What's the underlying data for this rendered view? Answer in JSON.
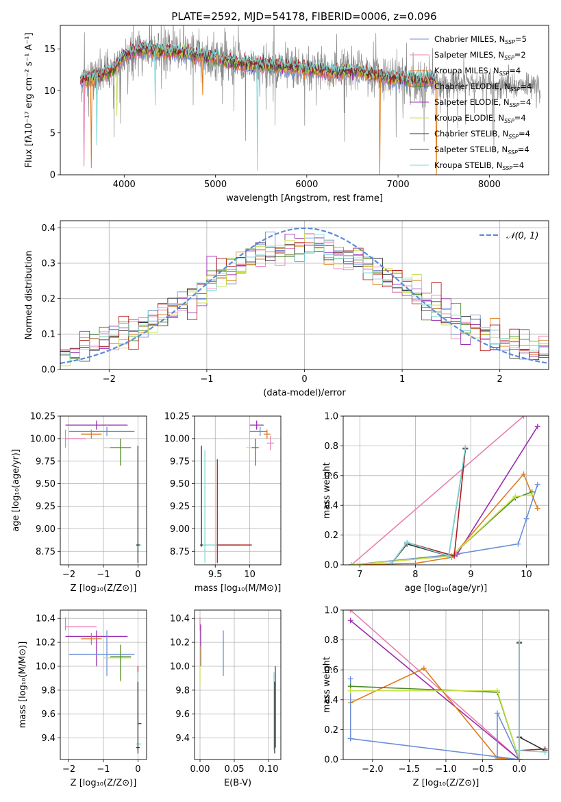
{
  "figure": {
    "title": "PLATE=2592, MJD=54178, FIBERID=0006, z=0.096"
  },
  "colors": {
    "Chabrier MILES": "#6a8fd8",
    "Salpeter MILES": "#e87fb0",
    "Kroupa MILES": "#e07b1a",
    "Chabrier ELODIE": "#4b8a2a",
    "Salpeter ELODIE": "#9a2cb0",
    "Kroupa ELODIE": "#c8e04a",
    "Chabrier STELIB": "#333333",
    "Salpeter STELIB": "#b01c1c",
    "Kroupa STELIB": "#7ed8d8",
    "data": "#888888",
    "normal": "#5b8bd8"
  },
  "chart_data": [
    {
      "id": "spectrum",
      "type": "line",
      "title": "PLATE=2592, MJD=54178, FIBERID=0006, z=0.096",
      "xlabel": "wavelength [Angstrom, rest frame]",
      "ylabel": "Flux [fλ10⁻¹⁷ erg cm⁻² s⁻¹ A⁻¹]",
      "xlim": [
        3300,
        8650
      ],
      "ylim": [
        0,
        17.8
      ],
      "xticks": [
        4000,
        5000,
        6000,
        7000,
        8000
      ],
      "yticks": [
        0,
        5,
        10,
        15
      ],
      "legend_position": "top-right",
      "legend": [
        {
          "name": "Chabrier MILES",
          "label": "Chabrier MILES, N",
          "sub": "SSP",
          "tail": "=5"
        },
        {
          "name": "Salpeter MILES",
          "label": "Salpeter MILES, N",
          "sub": "SSP",
          "tail": "=2"
        },
        {
          "name": "Kroupa MILES",
          "label": "Kroupa MILES, N",
          "sub": "SSP",
          "tail": "=4"
        },
        {
          "name": "Chabrier ELODIE",
          "label": "Chabrier ELODIE, N",
          "sub": "SSP",
          "tail": "=4"
        },
        {
          "name": "Salpeter ELODIE",
          "label": "Salpeter ELODIE, N",
          "sub": "SSP",
          "tail": "=4"
        },
        {
          "name": "Kroupa ELODIE",
          "label": "Kroupa ELODIE, N",
          "sub": "SSP",
          "tail": "=4"
        },
        {
          "name": "Chabrier STELIB",
          "label": "Chabrier STELIB, N",
          "sub": "SSP",
          "tail": "=4"
        },
        {
          "name": "Salpeter STELIB",
          "label": "Salpeter STELIB, N",
          "sub": "SSP",
          "tail": "=4"
        },
        {
          "name": "Kroupa STELIB",
          "label": "Kroupa STELIB, N",
          "sub": "SSP",
          "tail": "=4"
        }
      ],
      "continuum": [
        [
          3520,
          11.3
        ],
        [
          3700,
          11.6
        ],
        [
          3900,
          12.6
        ],
        [
          4000,
          14.2
        ],
        [
          4200,
          14.9
        ],
        [
          4500,
          14.7
        ],
        [
          4800,
          14.3
        ],
        [
          5000,
          13.9
        ],
        [
          5200,
          13.3
        ],
        [
          5500,
          13.0
        ],
        [
          5800,
          12.8
        ],
        [
          6000,
          12.6
        ],
        [
          6300,
          12.2
        ],
        [
          6560,
          12.3
        ],
        [
          6800,
          11.7
        ],
        [
          7000,
          11.4
        ],
        [
          7300,
          11.3
        ],
        [
          7400,
          11.3
        ]
      ],
      "data_noise": 1.3,
      "data_range": [
        3520,
        8560
      ],
      "dips": [
        [
          3560,
          1.0,
          "Salpeter MILES"
        ],
        [
          3640,
          0.8,
          "Kroupa MILES"
        ],
        [
          3700,
          3.5,
          "Kroupa STELIB"
        ],
        [
          3920,
          7.0,
          "Kroupa ELODIE"
        ],
        [
          4340,
          8.3,
          "Kroupa STELIB"
        ],
        [
          4860,
          9.5,
          "Kroupa MILES"
        ],
        [
          5460,
          0.5,
          "Kroupa STELIB"
        ],
        [
          6800,
          0.0,
          "Kroupa MILES"
        ],
        [
          7420,
          0.0,
          "Kroupa MILES"
        ]
      ]
    },
    {
      "id": "residuals",
      "type": "histogram",
      "xlabel": "(data-model)/error",
      "ylabel": "Normed distribution",
      "xlim": [
        -2.5,
        2.5
      ],
      "ylim": [
        0,
        0.42
      ],
      "xticks": [
        -2,
        -1,
        0,
        1,
        2
      ],
      "yticks": [
        0.0,
        0.1,
        0.2,
        0.3,
        0.4
      ],
      "grid": true,
      "legend_position": "top-right",
      "normal_label": "𝒩(0, 1)",
      "bin_width": 0.1
    },
    {
      "id": "age_vs_Z",
      "type": "errorbar",
      "xlabel": "Z [log₁₀(Z/Z⊙)]",
      "ylabel": "age  [log₁₀(age/yr)]",
      "xlim": [
        -2.25,
        0.25
      ],
      "ylim": [
        8.6,
        10.25
      ],
      "xticks": [
        -2,
        -1,
        0
      ],
      "yticks": [
        8.75,
        9.0,
        9.25,
        9.5,
        9.75,
        10.0,
        10.25
      ],
      "points": [
        {
          "name": "Salpeter MILES",
          "x": -2.1,
          "y": 10.0,
          "xerr": [
            0.0,
            0.6
          ],
          "yerr": [
            0.1,
            0.1
          ]
        },
        {
          "name": "Salpeter ELODIE",
          "x": -1.2,
          "y": 10.15,
          "xerr": [
            0.9,
            0.9
          ],
          "yerr": [
            0.05,
            0.05
          ]
        },
        {
          "name": "Chabrier MILES",
          "x": -0.9,
          "y": 10.08,
          "xerr": [
            1.1,
            0.8
          ],
          "yerr": [
            0.05,
            0.05
          ]
        },
        {
          "name": "Kroupa MILES",
          "x": -1.35,
          "y": 10.05,
          "xerr": [
            0.3,
            0.3
          ],
          "yerr": [
            0.05,
            0.05
          ]
        },
        {
          "name": "Kroupa ELODIE",
          "x": -0.5,
          "y": 9.9,
          "xerr": [
            0.5,
            0.3
          ],
          "yerr": [
            0.2,
            0.1
          ]
        },
        {
          "name": "Chabrier ELODIE",
          "x": -0.5,
          "y": 9.9,
          "xerr": [
            0.3,
            0.3
          ],
          "yerr": [
            0.2,
            0.1
          ]
        },
        {
          "name": "Kroupa STELIB",
          "x": 0.0,
          "y": 8.82,
          "xerr": [
            0.05,
            0.1
          ],
          "yerr": [
            0.2,
            1.1
          ]
        },
        {
          "name": "Chabrier STELIB",
          "x": 0.0,
          "y": 8.82,
          "xerr": [
            0.05,
            0.05
          ],
          "yerr": [
            0.2,
            1.1
          ]
        }
      ]
    },
    {
      "id": "age_vs_mass",
      "type": "errorbar",
      "xlabel": "mass [log₁₀(M/M⊙)]",
      "xlim": [
        9.2,
        10.45
      ],
      "ylim": [
        8.6,
        10.25
      ],
      "xticks": [
        9.5,
        10.0
      ],
      "yticks": [
        8.75,
        9.0,
        9.25,
        9.5,
        9.75,
        10.0,
        10.25
      ],
      "points": [
        {
          "name": "Salpeter ELODIE",
          "x": 10.1,
          "y": 10.15,
          "xerr": [
            0.1,
            0.1
          ],
          "yerr": [
            0.05,
            0.05
          ]
        },
        {
          "name": "Salpeter MILES",
          "x": 10.3,
          "y": 9.95,
          "xerr": [
            0.05,
            0.05
          ],
          "yerr": [
            0.08,
            0.08
          ]
        },
        {
          "name": "Chabrier MILES",
          "x": 10.15,
          "y": 10.08,
          "xerr": [
            0.15,
            0.1
          ],
          "yerr": [
            0.05,
            0.05
          ]
        },
        {
          "name": "Kroupa MILES",
          "x": 10.25,
          "y": 10.05,
          "xerr": [
            0.05,
            0.05
          ],
          "yerr": [
            0.05,
            0.05
          ]
        },
        {
          "name": "Kroupa ELODIE",
          "x": 10.08,
          "y": 9.9,
          "xerr": [
            0.13,
            0.05
          ],
          "yerr": [
            0.2,
            0.1
          ]
        },
        {
          "name": "Chabrier ELODIE",
          "x": 10.08,
          "y": 9.9,
          "xerr": [
            0.05,
            0.05
          ],
          "yerr": [
            0.2,
            0.1
          ]
        },
        {
          "name": "Kroupa STELIB",
          "x": 9.35,
          "y": 8.82,
          "xerr": [
            0.05,
            0.5
          ],
          "yerr": [
            0.2,
            1.05
          ]
        },
        {
          "name": "Chabrier STELIB",
          "x": 9.3,
          "y": 8.82,
          "xerr": [
            0.02,
            0.02
          ],
          "yerr": [
            0.02,
            1.1
          ]
        },
        {
          "name": "Salpeter STELIB",
          "x": 9.53,
          "y": 8.82,
          "xerr": [
            0.0,
            0.5
          ],
          "yerr": [
            0.2,
            0.95
          ]
        }
      ]
    },
    {
      "id": "weight_vs_age",
      "type": "line",
      "xlabel": "age  [log₁₀(age/yr)]",
      "ylabel": "mass weight",
      "xlim": [
        6.7,
        10.4
      ],
      "ylim": [
        0,
        1.0
      ],
      "xticks": [
        7,
        8,
        9,
        10
      ],
      "yticks": [
        0.0,
        0.2,
        0.4,
        0.6,
        0.8,
        1.0
      ],
      "series": [
        {
          "name": "Salpeter MILES",
          "x": [
            6.85,
            9.95
          ],
          "y": [
            0.0,
            1.0
          ]
        },
        {
          "name": "Salpeter ELODIE",
          "x": [
            6.85,
            8.75,
            10.2
          ],
          "y": [
            0.0,
            0.07,
            0.93
          ]
        },
        {
          "name": "Kroupa MILES",
          "x": [
            6.85,
            8.0,
            8.65,
            9.95,
            10.2
          ],
          "y": [
            0.0,
            0.01,
            0.05,
            0.61,
            0.38
          ]
        },
        {
          "name": "Chabrier MILES",
          "x": [
            6.85,
            8.7,
            9.85,
            10.0,
            10.2
          ],
          "y": [
            0.0,
            0.07,
            0.14,
            0.31,
            0.54
          ]
        },
        {
          "name": "Chabrier ELODIE",
          "x": [
            6.85,
            8.65,
            9.8,
            10.1
          ],
          "y": [
            0.0,
            0.06,
            0.45,
            0.49
          ]
        },
        {
          "name": "Kroupa ELODIE",
          "x": [
            6.85,
            8.65,
            9.8,
            10.1
          ],
          "y": [
            0.0,
            0.06,
            0.46,
            0.47
          ]
        },
        {
          "name": "Salpeter STELIB",
          "x": [
            7.55,
            7.85,
            8.7,
            8.9
          ],
          "y": [
            0.0,
            0.15,
            0.06,
            0.78
          ]
        },
        {
          "name": "Chabrier STELIB",
          "x": [
            7.55,
            7.85,
            8.6,
            8.9
          ],
          "y": [
            0.0,
            0.14,
            0.06,
            0.78
          ]
        },
        {
          "name": "Kroupa STELIB",
          "x": [
            7.55,
            7.85,
            8.6,
            8.9
          ],
          "y": [
            0.0,
            0.15,
            0.06,
            0.79
          ]
        }
      ]
    },
    {
      "id": "mass_vs_Z",
      "type": "errorbar",
      "xlabel": "Z [log₁₀(Z/Z⊙)]",
      "ylabel": "mass [log₁₀(M/M⊙)]",
      "xlim": [
        -2.25,
        0.25
      ],
      "ylim": [
        9.22,
        10.47
      ],
      "xticks": [
        -2,
        -1,
        0
      ],
      "yticks": [
        9.4,
        9.6,
        9.8,
        10.0,
        10.2,
        10.4
      ],
      "points": [
        {
          "name": "Salpeter MILES",
          "x": -2.1,
          "y": 10.33,
          "xerr": [
            0.0,
            0.9
          ],
          "yerr": [
            0.03,
            0.08
          ]
        },
        {
          "name": "Salpeter ELODIE",
          "x": -1.2,
          "y": 10.25,
          "xerr": [
            0.9,
            0.9
          ],
          "yerr": [
            0.25,
            0.05
          ]
        },
        {
          "name": "Chabrier MILES",
          "x": -0.9,
          "y": 10.1,
          "xerr": [
            1.1,
            0.8
          ],
          "yerr": [
            0.18,
            0.2
          ]
        },
        {
          "name": "Kroupa MILES",
          "x": -1.35,
          "y": 10.23,
          "xerr": [
            0.3,
            0.3
          ],
          "yerr": [
            0.05,
            0.05
          ]
        },
        {
          "name": "Kroupa ELODIE",
          "x": -0.5,
          "y": 10.07,
          "xerr": [
            0.5,
            0.3
          ],
          "yerr": [
            0.2,
            0.1
          ]
        },
        {
          "name": "Chabrier ELODIE",
          "x": -0.5,
          "y": 10.08,
          "xerr": [
            0.3,
            0.3
          ],
          "yerr": [
            0.2,
            0.1
          ]
        },
        {
          "name": "Salpeter STELIB",
          "x": 0.0,
          "y": 9.52,
          "xerr": [
            0.0,
            0.1
          ],
          "yerr": [
            0.0,
            0.48
          ]
        },
        {
          "name": "Kroupa STELIB",
          "x": 0.0,
          "y": 9.35,
          "xerr": [
            0.05,
            0.1
          ],
          "yerr": [
            0.05,
            0.6
          ]
        },
        {
          "name": "Chabrier STELIB",
          "x": 0.0,
          "y": 9.32,
          "xerr": [
            0.05,
            0.05
          ],
          "yerr": [
            0.05,
            0.55
          ]
        }
      ]
    },
    {
      "id": "mass_vs_ebv",
      "type": "errorbar",
      "xlabel": "E(B-V)",
      "xlim": [
        -0.008,
        0.118
      ],
      "ylim": [
        9.22,
        10.47
      ],
      "xticks": [
        0.0,
        0.05,
        0.1
      ],
      "xticklabels": [
        "0.00",
        "0.05",
        "0.10"
      ],
      "yticks": [
        9.4,
        9.6,
        9.8,
        10.0,
        10.2,
        10.4
      ],
      "points": [
        {
          "name": "Salpeter MILES",
          "x": 0.0,
          "y": 10.33,
          "xerr": [
            0,
            0
          ],
          "yerr": [
            0.03,
            0.08
          ]
        },
        {
          "name": "Salpeter ELODIE",
          "x": 0.001,
          "y": 10.25,
          "xerr": [
            0,
            0
          ],
          "yerr": [
            0.25,
            0.1
          ]
        },
        {
          "name": "Kroupa ELODIE",
          "x": 0.0,
          "y": 10.07,
          "xerr": [
            0,
            0
          ],
          "yerr": [
            0.22,
            0.1
          ]
        },
        {
          "name": "Chabrier MILES",
          "x": 0.034,
          "y": 10.1,
          "xerr": [
            0,
            0
          ],
          "yerr": [
            0.18,
            0.2
          ]
        },
        {
          "name": "Salpeter STELIB",
          "x": 0.11,
          "y": 9.52,
          "xerr": [
            0,
            0
          ],
          "yerr": [
            0.2,
            0.48
          ]
        },
        {
          "name": "Kroupa STELIB",
          "x": 0.108,
          "y": 9.35,
          "xerr": [
            0,
            0
          ],
          "yerr": [
            0.05,
            0.6
          ]
        },
        {
          "name": "Chabrier STELIB",
          "x": 0.109,
          "y": 9.32,
          "xerr": [
            0,
            0
          ],
          "yerr": [
            0.05,
            0.55
          ]
        }
      ]
    },
    {
      "id": "weight_vs_Z",
      "type": "line",
      "xlabel": "Z [log₁₀(Z/Z⊙)]",
      "ylabel": "mass weight",
      "xlim": [
        -2.4,
        0.4
      ],
      "ylim": [
        0,
        1.0
      ],
      "xticks": [
        -2.0,
        -1.5,
        -1.0,
        -0.5,
        0.0
      ],
      "xticklabels": [
        "−2.0",
        "−1.5",
        "−1.0",
        "−0.5",
        "0.0"
      ],
      "yticks": [
        0.0,
        0.2,
        0.4,
        0.6,
        0.8,
        1.0
      ],
      "series": [
        {
          "name": "Salpeter MILES",
          "x": [
            -2.3,
            0.0
          ],
          "y": [
            1.0,
            0.0
          ]
        },
        {
          "name": "Salpeter ELODIE",
          "x": [
            -2.3,
            0.0
          ],
          "y": [
            0.93,
            0.0
          ]
        },
        {
          "name": "Kroupa MILES",
          "x": [
            -2.3,
            -1.3,
            -0.3,
            0.0
          ],
          "y": [
            0.38,
            0.61,
            0.01,
            0.0
          ]
        },
        {
          "name": "Chabrier MILES",
          "x": [
            -2.3,
            -2.3,
            -2.3,
            0.0,
            -0.3,
            -0.3,
            0.0
          ],
          "y": [
            0.54,
            0.14,
            0.14,
            0.0,
            0.0,
            0.31,
            0.0
          ]
        },
        {
          "name": "Chabrier ELODIE",
          "x": [
            -2.3,
            -0.3,
            0.0
          ],
          "y": [
            0.49,
            0.45,
            0.0
          ]
        },
        {
          "name": "Kroupa ELODIE",
          "x": [
            -2.3,
            -0.3,
            0.0
          ],
          "y": [
            0.46,
            0.46,
            0.0
          ]
        },
        {
          "name": "Salpeter STELIB",
          "x": [
            0.0,
            0.0,
            0.0,
            0.35
          ],
          "y": [
            0.78,
            0.0,
            0.06,
            0.07
          ]
        },
        {
          "name": "Chabrier STELIB",
          "x": [
            0.0,
            0.0,
            0.0,
            0.35
          ],
          "y": [
            0.78,
            0.0,
            0.15,
            0.06
          ]
        },
        {
          "name": "Kroupa STELIB",
          "x": [
            0.0,
            0.0,
            0.0,
            0.35
          ],
          "y": [
            0.79,
            0.0,
            0.06,
            0.05
          ]
        }
      ]
    }
  ]
}
